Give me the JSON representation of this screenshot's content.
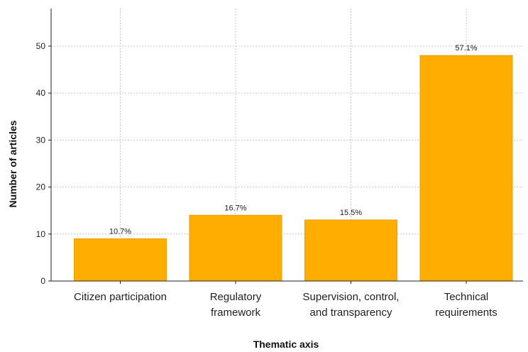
{
  "chart_data": {
    "type": "bar",
    "categories": [
      [
        "Citizen participation"
      ],
      [
        "Regulatory",
        "framework"
      ],
      [
        "Supervision,  control,",
        "and transparency"
      ],
      [
        "Technical",
        "requirements"
      ]
    ],
    "values": [
      9,
      14,
      13,
      48
    ],
    "data_labels": [
      "10.7%",
      "16.7%",
      "15.5%",
      "57.1%"
    ],
    "xlabel": "Thematic axis",
    "ylabel": "Number of articles",
    "yticks": [
      0,
      10,
      20,
      30,
      40,
      50
    ],
    "ylim": [
      0,
      58
    ],
    "grid": true,
    "bar_color": "#FFAE00",
    "bar_edge_color": "#E89E00",
    "grid_color": "#c8c8c8"
  }
}
